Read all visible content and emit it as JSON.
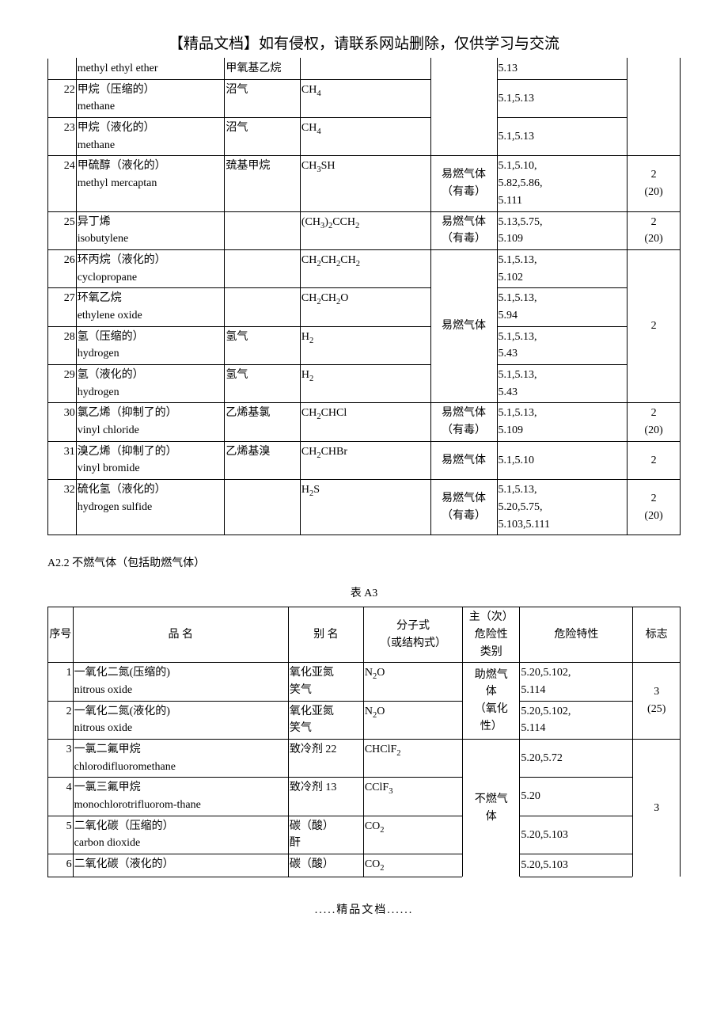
{
  "header_note": "【精品文档】如有侵权，请联系网站删除，仅供学习与交流",
  "footer_note": ".....精品文档......",
  "section2_heading": "A2.2 不燃气体（包括助燃气体）",
  "table2_caption": "表 A3",
  "t1": {
    "r21b": {
      "name_cn": "methyl ethyl ether",
      "alt": "甲氧基乙烷",
      "hazard": "5.13"
    },
    "r22": {
      "num": "22",
      "name_cn": "甲烷（压缩的）",
      "name_en": "methane",
      "alt": "沼气",
      "formula": "CH<sub>4</sub>",
      "hazard": "5.1,5.13"
    },
    "r23": {
      "num": "23",
      "name_cn": "甲烷（液化的）",
      "name_en": "methane",
      "alt": "沼气",
      "formula": "CH<sub>4</sub>",
      "hazard": "5.1,5.13"
    },
    "r24": {
      "num": "24",
      "name_cn": "甲硫醇（液化的）",
      "name_en": "methyl mercaptan",
      "alt": "巯基甲烷",
      "formula": "CH<sub>3</sub>SH",
      "class": "易燃气体<br>（有毒）",
      "hazard": "5.1,5.10,<br>5.82,5.86,<br>5.111",
      "mark": "2<br>(20)"
    },
    "r25": {
      "num": "25",
      "name_cn": "异丁烯",
      "name_en": "isobutylene",
      "alt": "",
      "formula": "(CH<sub>3</sub>)<sub>2</sub>CCH<sub>2</sub>",
      "class": "易燃气体<br>（有毒）",
      "hazard": "5.13,5.75,<br>5.109",
      "mark": "2<br>(20)"
    },
    "r26": {
      "num": "26",
      "name_cn": "环丙烷（液化的）",
      "name_en": "cyclopropane",
      "alt": "",
      "formula": "CH<sub>2</sub>CH<sub>2</sub>CH<sub>2</sub>",
      "hazard": "5.1,5.13,<br>5.102"
    },
    "r27": {
      "num": "27",
      "name_cn": "环氧乙烷",
      "name_en": "ethylene oxide",
      "alt": "",
      "formula": "CH<sub>2</sub>CH<sub>2</sub>O",
      "hazard": "5.1,5.13,<br>5.94"
    },
    "r28": {
      "num": "28",
      "name_cn": "氢（压缩的）",
      "name_en": "hydrogen",
      "alt": "氢气",
      "formula": "H<sub>2</sub>",
      "hazard": "5.1,5.13,<br>5.43"
    },
    "r29": {
      "num": "29",
      "name_cn": "氢（液化的）",
      "name_en": "hydrogen",
      "alt": "氢气",
      "formula": "H<sub>2</sub>",
      "hazard": "5.1,5.13,<br>5.43"
    },
    "class_26_29": "易燃气体",
    "mark_26_29": "2",
    "r30": {
      "num": "30",
      "name_cn": "氯乙烯（抑制了的）",
      "name_en": "vinyl chloride",
      "alt": "乙烯基氯",
      "formula": "CH<sub>2</sub>CHCl",
      "class": "易燃气体<br>（有毒）",
      "hazard": "5.1,5.13,<br>5.109",
      "mark": "2<br>(20)"
    },
    "r31": {
      "num": "31",
      "name_cn": "溴乙烯（抑制了的）",
      "name_en": "vinyl bromide",
      "alt": "乙烯基溴",
      "formula": "CH<sub>2</sub>CHBr",
      "class": "易燃气体",
      "hazard": "5.1,5.10",
      "mark": "2"
    },
    "r32": {
      "num": "32",
      "name_cn": "硫化氢（液化的）",
      "name_en": "hydrogen sulfide",
      "alt": "",
      "formula": "H<sub>2</sub>S",
      "class": "易燃气体<br>（有毒）",
      "hazard": "5.1,5.13,<br>5.20,5.75,<br>5.103,5.111",
      "mark": "2<br>(20)"
    }
  },
  "t2": {
    "header": {
      "num": "序号",
      "name": "品 名",
      "alt": "别 名",
      "formula": "分子式<br>（或结构式）",
      "class": "主（次）<br>危险性<br>类别",
      "hazard": "危险特性",
      "mark": "标志"
    },
    "r1": {
      "num": "1",
      "name_cn": "一氧化二氮(压缩的)",
      "name_en": "nitrous oxide",
      "alt": "氧化亚氮<br>笑气",
      "formula": "N<sub>2</sub>O",
      "hazard": "5.20,5.102,<br>5.114"
    },
    "r2": {
      "num": "2",
      "name_cn": "一氧化二氮(液化的)",
      "name_en": "nitrous oxide",
      "alt": "氧化亚氮<br>笑气",
      "formula": "N<sub>2</sub>O",
      "hazard": "5.20,5.102,<br>5.114"
    },
    "class_1_2": "助燃气<br>体<br>（氧化<br>性）",
    "mark_1_2": "3<br>(25)",
    "r3": {
      "num": "3",
      "name_cn": "一氯二氟甲烷",
      "name_en": "chlorodifluoromethane",
      "alt": "致冷剂 22",
      "formula": "CHClF<sub>2</sub>",
      "hazard": "5.20,5.72"
    },
    "r4": {
      "num": "4",
      "name_cn": "一氯三氟甲烷",
      "name_en": "monochlorotrifluorom-thane",
      "alt": "致冷剂 13",
      "formula": "CClF<sub>3</sub>",
      "hazard": "5.20"
    },
    "r5": {
      "num": "5",
      "name_cn": "二氧化碳（压缩的）",
      "name_en": "carbon dioxide",
      "alt": "碳（酸）<br>酐",
      "formula": "CO<sub>2</sub>",
      "hazard": "5.20,5.103"
    },
    "r6": {
      "num": "6",
      "name_cn": "二氧化碳（液化的）",
      "name_en": "",
      "alt": "碳（酸）",
      "formula": "CO<sub>2</sub>",
      "hazard": "5.20,5.103"
    },
    "class_3_6": "不燃气<br>体",
    "mark_3_6": "3"
  }
}
